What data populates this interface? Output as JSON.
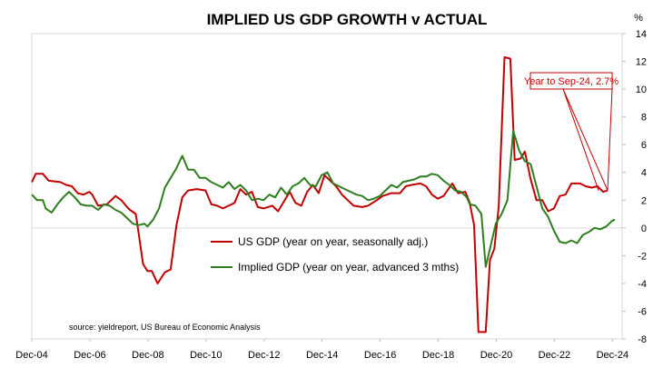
{
  "chart_data": {
    "type": "line",
    "title": "IMPLIED US GDP GROWTH v ACTUAL",
    "ylabel": "%",
    "ylim": [
      -8,
      14
    ],
    "yticks": [
      14,
      12,
      10,
      8,
      6,
      4,
      2,
      0,
      -2,
      -4,
      -6,
      -8
    ],
    "xlim": [
      2004.917,
      2025.25
    ],
    "xticks": [
      {
        "label": "Dec-04",
        "x": 2004.917
      },
      {
        "label": "Dec-06",
        "x": 2006.917
      },
      {
        "label": "Dec-08",
        "x": 2008.917
      },
      {
        "label": "Dec-10",
        "x": 2010.917
      },
      {
        "label": "Dec-12",
        "x": 2012.917
      },
      {
        "label": "Dec-14",
        "x": 2014.917
      },
      {
        "label": "Dec-16",
        "x": 2016.917
      },
      {
        "label": "Dec-18",
        "x": 2018.917
      },
      {
        "label": "Dec-20",
        "x": 2020.917
      },
      {
        "label": "Dec-22",
        "x": 2022.917
      },
      {
        "label": "Dec-24",
        "x": 2024.917
      }
    ],
    "grid": false,
    "legend_position": "bottom-center",
    "annotation": "Year to Sep-24, 2.7%",
    "source": "source: yieldreport, US Bureau of Economic Analysis",
    "series": [
      {
        "name": "US GDP (year on year, seasonally adj.)",
        "color": "#c00000",
        "points": [
          [
            2004.92,
            3.3
          ],
          [
            2005.05,
            3.9
          ],
          [
            2005.3,
            3.9
          ],
          [
            2005.5,
            3.4
          ],
          [
            2005.9,
            3.3
          ],
          [
            2006.1,
            3.1
          ],
          [
            2006.3,
            3.0
          ],
          [
            2006.5,
            2.5
          ],
          [
            2006.7,
            2.4
          ],
          [
            2006.9,
            2.6
          ],
          [
            2007.0,
            2.4
          ],
          [
            2007.2,
            1.6
          ],
          [
            2007.5,
            1.7
          ],
          [
            2007.8,
            2.3
          ],
          [
            2008.0,
            2.0
          ],
          [
            2008.2,
            1.5
          ],
          [
            2008.3,
            1.3
          ],
          [
            2008.5,
            1.0
          ],
          [
            2008.6,
            -0.4
          ],
          [
            2008.75,
            -2.6
          ],
          [
            2008.9,
            -3.1
          ],
          [
            2009.05,
            -3.1
          ],
          [
            2009.25,
            -4.0
          ],
          [
            2009.5,
            -3.2
          ],
          [
            2009.7,
            -3.0
          ],
          [
            2009.9,
            0.2
          ],
          [
            2010.1,
            2.2
          ],
          [
            2010.3,
            2.7
          ],
          [
            2010.6,
            2.8
          ],
          [
            2010.9,
            2.7
          ],
          [
            2011.1,
            1.7
          ],
          [
            2011.3,
            1.6
          ],
          [
            2011.5,
            1.4
          ],
          [
            2011.7,
            1.6
          ],
          [
            2011.9,
            1.8
          ],
          [
            2012.1,
            2.8
          ],
          [
            2012.3,
            2.4
          ],
          [
            2012.5,
            2.6
          ],
          [
            2012.7,
            1.5
          ],
          [
            2012.9,
            1.4
          ],
          [
            2013.2,
            1.6
          ],
          [
            2013.4,
            1.2
          ],
          [
            2013.6,
            1.9
          ],
          [
            2013.8,
            2.6
          ],
          [
            2014.0,
            1.8
          ],
          [
            2014.2,
            1.6
          ],
          [
            2014.4,
            2.6
          ],
          [
            2014.6,
            3.1
          ],
          [
            2014.8,
            2.5
          ],
          [
            2015.0,
            3.8
          ],
          [
            2015.2,
            3.4
          ],
          [
            2015.4,
            3.0
          ],
          [
            2015.6,
            2.4
          ],
          [
            2015.8,
            2.0
          ],
          [
            2016.0,
            1.6
          ],
          [
            2016.3,
            1.5
          ],
          [
            2016.5,
            1.6
          ],
          [
            2016.8,
            2.0
          ],
          [
            2017.0,
            2.3
          ],
          [
            2017.3,
            2.5
          ],
          [
            2017.6,
            2.5
          ],
          [
            2017.8,
            3.0
          ],
          [
            2018.0,
            3.1
          ],
          [
            2018.3,
            3.2
          ],
          [
            2018.5,
            3.0
          ],
          [
            2018.7,
            2.4
          ],
          [
            2018.9,
            2.1
          ],
          [
            2019.1,
            2.3
          ],
          [
            2019.4,
            3.2
          ],
          [
            2019.6,
            2.5
          ],
          [
            2019.85,
            2.6
          ],
          [
            2020.0,
            1.8
          ],
          [
            2020.15,
            0.2
          ],
          [
            2020.3,
            -7.5
          ],
          [
            2020.55,
            -7.5
          ],
          [
            2020.7,
            -2.3
          ],
          [
            2020.85,
            -1.5
          ],
          [
            2021.0,
            1.5
          ],
          [
            2021.2,
            12.3
          ],
          [
            2021.4,
            12.2
          ],
          [
            2021.55,
            4.9
          ],
          [
            2021.75,
            5.0
          ],
          [
            2021.9,
            5.5
          ],
          [
            2022.1,
            3.5
          ],
          [
            2022.3,
            2.0
          ],
          [
            2022.5,
            2.0
          ],
          [
            2022.7,
            1.2
          ],
          [
            2022.9,
            1.4
          ],
          [
            2023.1,
            2.3
          ],
          [
            2023.3,
            2.4
          ],
          [
            2023.5,
            3.2
          ],
          [
            2023.8,
            3.2
          ],
          [
            2024.0,
            3.0
          ],
          [
            2024.2,
            2.9
          ],
          [
            2024.4,
            3.0
          ],
          [
            2024.6,
            2.6
          ],
          [
            2024.75,
            2.7
          ]
        ]
      },
      {
        "name": "Implied GDP (year on year, advanced 3 mths)",
        "color": "#2e7d1f",
        "points": [
          [
            2004.92,
            2.4
          ],
          [
            2005.1,
            2.0
          ],
          [
            2005.3,
            2.0
          ],
          [
            2005.4,
            1.4
          ],
          [
            2005.6,
            1.1
          ],
          [
            2005.8,
            1.7
          ],
          [
            2006.0,
            2.2
          ],
          [
            2006.2,
            2.6
          ],
          [
            2006.4,
            2.2
          ],
          [
            2006.6,
            1.7
          ],
          [
            2006.8,
            1.6
          ],
          [
            2007.0,
            1.6
          ],
          [
            2007.2,
            1.3
          ],
          [
            2007.4,
            1.7
          ],
          [
            2007.6,
            1.6
          ],
          [
            2007.8,
            1.3
          ],
          [
            2008.0,
            1.1
          ],
          [
            2008.2,
            0.7
          ],
          [
            2008.4,
            0.3
          ],
          [
            2008.6,
            0.2
          ],
          [
            2008.8,
            0.3
          ],
          [
            2008.9,
            0.1
          ],
          [
            2009.1,
            0.6
          ],
          [
            2009.3,
            1.4
          ],
          [
            2009.5,
            2.9
          ],
          [
            2009.7,
            3.6
          ],
          [
            2009.9,
            4.3
          ],
          [
            2010.1,
            5.2
          ],
          [
            2010.3,
            4.2
          ],
          [
            2010.5,
            4.2
          ],
          [
            2010.7,
            3.6
          ],
          [
            2010.9,
            3.6
          ],
          [
            2011.1,
            3.3
          ],
          [
            2011.3,
            3.1
          ],
          [
            2011.5,
            2.9
          ],
          [
            2011.7,
            3.3
          ],
          [
            2011.9,
            2.8
          ],
          [
            2012.1,
            3.1
          ],
          [
            2012.3,
            2.7
          ],
          [
            2012.5,
            2.0
          ],
          [
            2012.7,
            2.1
          ],
          [
            2012.9,
            2.0
          ],
          [
            2013.1,
            2.4
          ],
          [
            2013.3,
            2.2
          ],
          [
            2013.5,
            2.9
          ],
          [
            2013.7,
            2.4
          ],
          [
            2013.9,
            3.0
          ],
          [
            2014.1,
            3.2
          ],
          [
            2014.3,
            3.6
          ],
          [
            2014.5,
            3.1
          ],
          [
            2014.7,
            3.0
          ],
          [
            2014.9,
            3.8
          ],
          [
            2015.1,
            4.0
          ],
          [
            2015.3,
            3.2
          ],
          [
            2015.5,
            3.0
          ],
          [
            2015.7,
            2.8
          ],
          [
            2015.9,
            2.6
          ],
          [
            2016.1,
            2.4
          ],
          [
            2016.3,
            2.3
          ],
          [
            2016.5,
            2.0
          ],
          [
            2016.7,
            2.1
          ],
          [
            2016.9,
            2.3
          ],
          [
            2017.1,
            2.7
          ],
          [
            2017.3,
            3.1
          ],
          [
            2017.5,
            2.9
          ],
          [
            2017.7,
            3.3
          ],
          [
            2017.9,
            3.4
          ],
          [
            2018.1,
            3.5
          ],
          [
            2018.3,
            3.7
          ],
          [
            2018.5,
            3.7
          ],
          [
            2018.7,
            3.9
          ],
          [
            2018.9,
            3.8
          ],
          [
            2019.1,
            3.4
          ],
          [
            2019.3,
            3.1
          ],
          [
            2019.5,
            2.7
          ],
          [
            2019.7,
            2.6
          ],
          [
            2019.9,
            2.2
          ],
          [
            2020.0,
            1.7
          ],
          [
            2020.2,
            1.6
          ],
          [
            2020.4,
            1.0
          ],
          [
            2020.55,
            -2.8
          ],
          [
            2020.7,
            -1.5
          ],
          [
            2020.9,
            0.3
          ],
          [
            2021.1,
            1.0
          ],
          [
            2021.3,
            2.0
          ],
          [
            2021.5,
            7.0
          ],
          [
            2021.7,
            5.6
          ],
          [
            2021.9,
            4.8
          ],
          [
            2022.1,
            4.6
          ],
          [
            2022.3,
            3.0
          ],
          [
            2022.5,
            1.4
          ],
          [
            2022.7,
            0.8
          ],
          [
            2022.9,
            -0.2
          ],
          [
            2023.1,
            -1.0
          ],
          [
            2023.3,
            -1.1
          ],
          [
            2023.5,
            -0.9
          ],
          [
            2023.7,
            -1.1
          ],
          [
            2023.9,
            -0.5
          ],
          [
            2024.1,
            -0.3
          ],
          [
            2024.3,
            0.0
          ],
          [
            2024.5,
            -0.1
          ],
          [
            2024.7,
            0.1
          ],
          [
            2024.9,
            0.5
          ],
          [
            2025.0,
            0.6
          ]
        ]
      }
    ]
  }
}
